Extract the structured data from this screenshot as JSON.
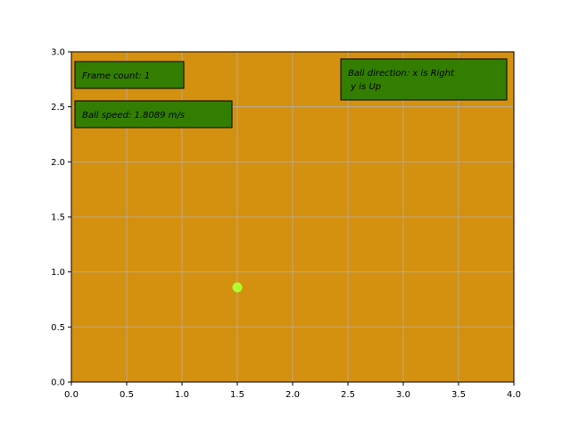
{
  "chart_data": {
    "type": "scatter",
    "title": "",
    "xlabel": "",
    "ylabel": "",
    "xlim": [
      0,
      4
    ],
    "ylim": [
      0,
      3
    ],
    "x_ticks": [
      0.0,
      0.5,
      1.0,
      1.5,
      2.0,
      2.5,
      3.0,
      3.5,
      4.0
    ],
    "y_ticks": [
      0.0,
      0.5,
      1.0,
      1.5,
      2.0,
      2.5,
      3.0
    ],
    "x_tick_labels": [
      "0.0",
      "0.5",
      "1.0",
      "1.5",
      "2.0",
      "2.5",
      "3.0",
      "3.5",
      "4.0"
    ],
    "y_tick_labels": [
      "0.0",
      "0.5",
      "1.0",
      "1.5",
      "2.0",
      "2.5",
      "3.0"
    ],
    "grid": true,
    "background_color": "#d4900f",
    "points": [
      {
        "x": 1.5,
        "y": 0.86,
        "color": "#adff2f"
      }
    ],
    "annotations": {
      "frame_count": "Frame count: 1",
      "ball_speed": "Ball speed: 1.8089 m/s",
      "direction_line1": "Ball direction:  x is Right",
      "direction_line2": " y is Up"
    },
    "annotation_box_color": "#2a7d00"
  }
}
